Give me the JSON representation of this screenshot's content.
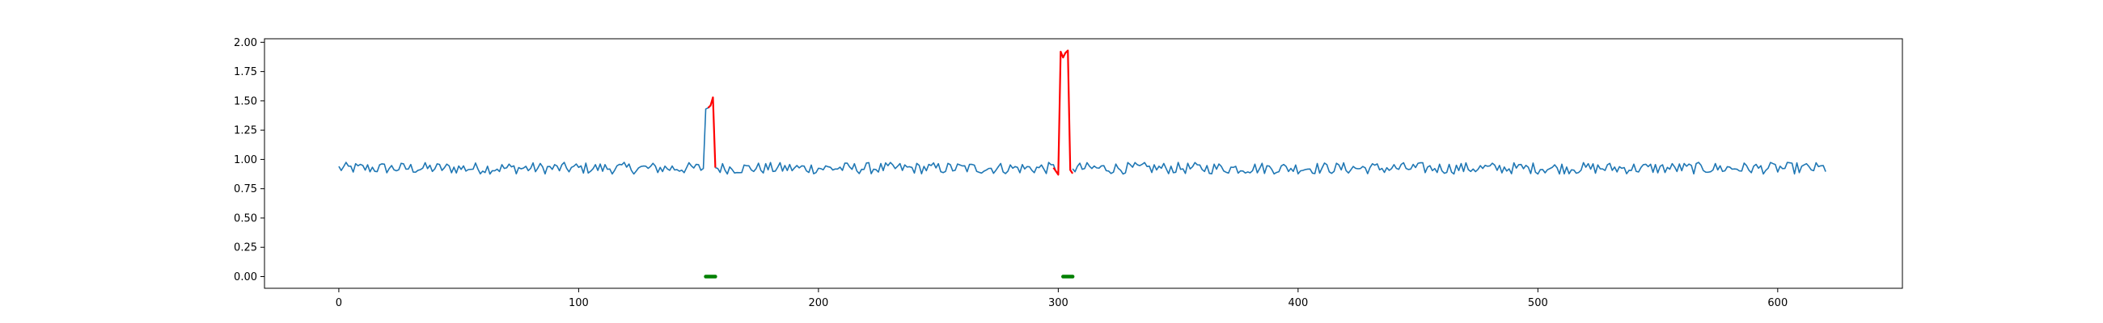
{
  "chart_data": {
    "type": "line",
    "title": "",
    "xlabel": "",
    "ylabel": "",
    "xlim": [
      -31,
      652
    ],
    "ylim": [
      -0.1,
      2.03
    ],
    "xticks": [
      0,
      100,
      200,
      300,
      400,
      500,
      600
    ],
    "yticks": [
      0.0,
      0.25,
      0.5,
      0.75,
      1.0,
      1.25,
      1.5,
      1.75,
      2.0
    ],
    "xtick_labels": [
      "0",
      "100",
      "200",
      "300",
      "400",
      "500",
      "600"
    ],
    "ytick_labels": [
      "0.00",
      "0.25",
      "0.50",
      "0.75",
      "1.00",
      "1.25",
      "1.50",
      "1.75",
      "2.00"
    ],
    "grid": false,
    "legend": "none",
    "n_points": 621,
    "baseline": {
      "x_range": [
        0,
        620
      ],
      "typical_range": [
        0.86,
        0.99
      ],
      "note_values": "approximate noisy series around 0.92"
    },
    "series": [
      {
        "color": "#1f77b4",
        "x": [
          0,
          10,
          20,
          30,
          40,
          50,
          60,
          70,
          80,
          90,
          100,
          110,
          120,
          130,
          140,
          150,
          152,
          153,
          154,
          155,
          157,
          160,
          170,
          180,
          190,
          200,
          210,
          220,
          230,
          240,
          250,
          260,
          270,
          280,
          290,
          299,
          300,
          306,
          310,
          320,
          330,
          340,
          350,
          360,
          370,
          380,
          390,
          400,
          410,
          420,
          430,
          440,
          450,
          460,
          470,
          480,
          490,
          500,
          510,
          520,
          530,
          540,
          550,
          560,
          570,
          580,
          590,
          600,
          610,
          620
        ],
        "y": [
          0.95,
          0.9,
          0.93,
          0.9,
          0.92,
          0.91,
          0.97,
          0.93,
          0.92,
          0.93,
          0.9,
          0.92,
          0.93,
          0.91,
          0.95,
          0.91,
          0.9,
          1.43,
          1.44,
          1.46,
          0.93,
          0.94,
          0.91,
          0.92,
          0.95,
          0.93,
          0.9,
          0.92,
          0.93,
          0.91,
          0.96,
          0.9,
          0.93,
          0.9,
          0.92,
          0.9,
          0.88,
          0.92,
          0.95,
          0.92,
          0.9,
          0.91,
          0.93,
          0.96,
          0.92,
          0.91,
          0.93,
          0.9,
          0.95,
          0.92,
          0.94,
          0.91,
          0.95,
          0.92,
          0.9,
          0.93,
          0.92,
          0.91,
          0.94,
          0.92,
          0.9,
          0.93,
          0.91,
          0.93,
          0.92,
          0.91,
          0.94,
          0.92,
          0.9,
          0.96
        ]
      },
      {
        "color": "#ff0000",
        "x": [
          154,
          155,
          156,
          157
        ],
        "y": [
          1.44,
          1.46,
          1.53,
          0.93
        ]
      },
      {
        "color": "#ff0000",
        "x": [
          298,
          300,
          301,
          302,
          303,
          304,
          305,
          306
        ],
        "y": [
          0.93,
          0.87,
          1.92,
          1.87,
          1.91,
          1.93,
          0.91,
          0.88
        ]
      },
      {
        "color": "#008000",
        "x": [
          153,
          157
        ],
        "y": [
          0.0,
          0.0
        ]
      },
      {
        "color": "#008000",
        "x": [
          302,
          306
        ],
        "y": [
          0.0,
          0.0
        ]
      }
    ]
  }
}
